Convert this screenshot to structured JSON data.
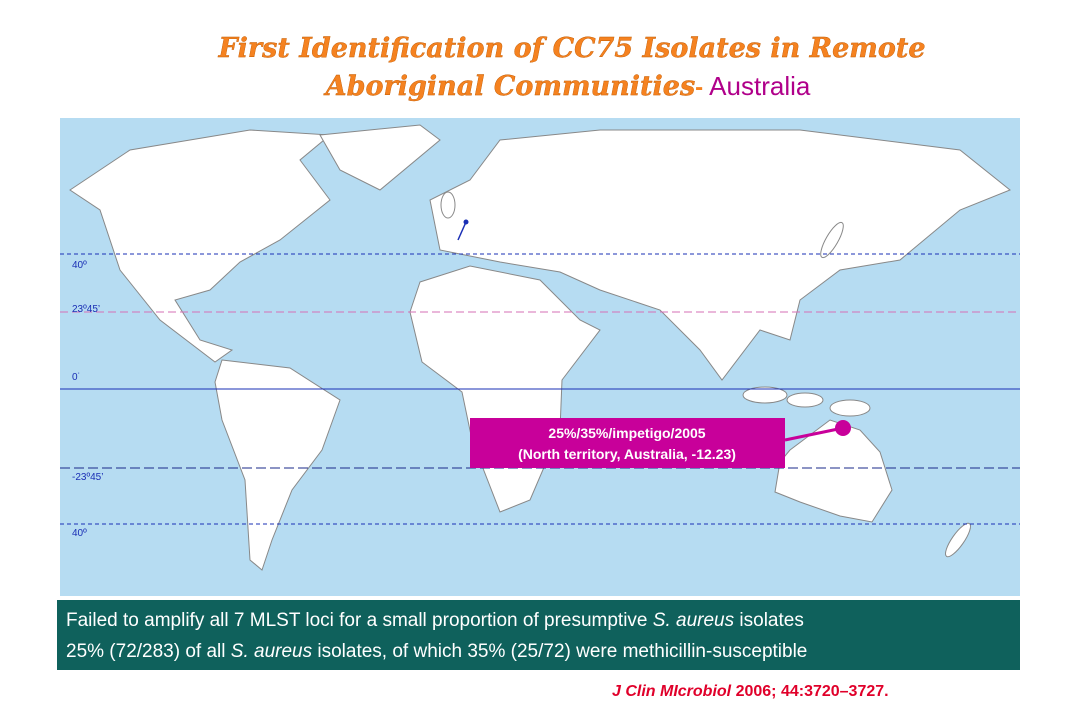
{
  "title": {
    "line1": "First Identification of CC75 Isolates in Remote",
    "line2": "Aboriginal Communities",
    "dash": "-",
    "region": "Australia"
  },
  "latitudes": [
    "40º",
    "23º45’",
    "0˙",
    "-23º45’",
    "40º"
  ],
  "callout": {
    "line1": "25%/35%/impetigo/2005",
    "line2": "(North territory, Australia, -12.23)"
  },
  "summary": {
    "line1": [
      "Failed to amplify all 7 MLST loci for a small proportion of presumptive ",
      "S. aureus",
      " isolates"
    ],
    "line2": [
      "25% (72/283) of all ",
      "S. aureus",
      " isolates, of which 35% (25/72) were methicillin-susceptible"
    ]
  },
  "citation": {
    "journal": "J Clin MIcrobiol",
    "details": " 2006; 44:3720–3727."
  }
}
